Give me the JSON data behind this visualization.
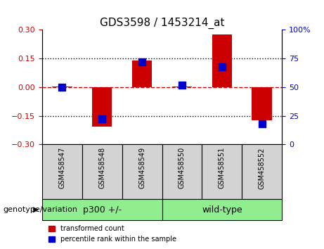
{
  "title": "GDS3598 / 1453214_at",
  "samples": [
    "GSM458547",
    "GSM458548",
    "GSM458549",
    "GSM458550",
    "GSM458551",
    "GSM458552"
  ],
  "red_values": [
    0.002,
    -0.205,
    0.14,
    0.003,
    0.275,
    -0.175
  ],
  "blue_percentiles": [
    50,
    22,
    72,
    52,
    68,
    18
  ],
  "groups": [
    {
      "label": "p300 +/-",
      "indices": [
        0,
        1,
        2
      ],
      "color": "#90EE90"
    },
    {
      "label": "wild-type",
      "indices": [
        3,
        4,
        5
      ],
      "color": "#90EE90"
    }
  ],
  "ylim_left": [
    -0.3,
    0.3
  ],
  "ylim_right": [
    0,
    100
  ],
  "yticks_left": [
    -0.3,
    -0.15,
    0,
    0.15,
    0.3
  ],
  "yticks_right": [
    0,
    25,
    50,
    75,
    100
  ],
  "red_color": "#CC0000",
  "blue_color": "#0000CC",
  "bar_width": 0.5,
  "blue_marker_size": 7,
  "hline_color": "#CC0000",
  "grid_color": "black",
  "left_label_color": "#CC0000",
  "right_label_color": "#0000CC",
  "legend_red_label": "transformed count",
  "legend_blue_label": "percentile rank within the sample",
  "genotype_label": "genotype/variation",
  "xlabel_rotation": -90,
  "background_plot": "white",
  "background_labels": "#D3D3D3",
  "background_groups": "#90EE90"
}
